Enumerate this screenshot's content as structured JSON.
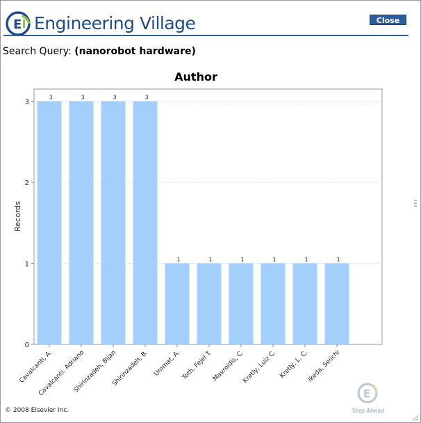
{
  "header": {
    "logo_text": "Engineering Village",
    "close_label": "Close"
  },
  "query": {
    "label": "Search Query:",
    "value": "(nanorobot hardware)"
  },
  "footer": {
    "copyright": "© 2008 Elsevier Inc.",
    "step_ahead": "Step Ahead"
  },
  "colors": {
    "bar": "#a3cffb",
    "brand_blue": "#1e4b8c",
    "logo_green": "#8dc63f"
  },
  "icons": {
    "logo": "engineering-village-logo-icon",
    "step_ahead": "step-ahead-logo-icon"
  },
  "chart_data": {
    "type": "bar",
    "title": "Author",
    "xlabel": "",
    "ylabel": "Records",
    "ylim": [
      0,
      3.15
    ],
    "yticks": [
      0,
      1,
      2,
      3
    ],
    "grid": true,
    "categories": [
      "Cavalcanti, A.",
      "Cavalcanti, Adriano",
      "Shirinzadeh, Bijan",
      "Shirinzadeh, B.",
      "Ummat, A.",
      "Toth, Fejel T.",
      "Mavroidis, C.",
      "Kretly, Luiz C.",
      "Kretly, L. C.",
      "Ikeda, Seiichi"
    ],
    "values": [
      3,
      3,
      3,
      3,
      1,
      1,
      1,
      1,
      1,
      1
    ],
    "data_labels": [
      "3",
      "3",
      "3",
      "3",
      "1",
      "1",
      "1",
      "1",
      "1",
      "1"
    ]
  }
}
